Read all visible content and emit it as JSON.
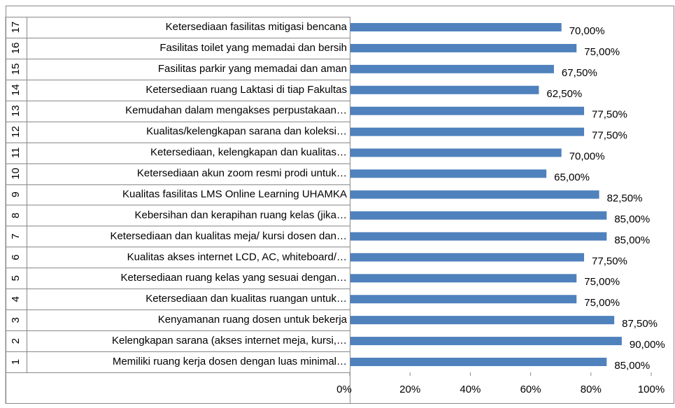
{
  "chart_data": {
    "type": "bar",
    "orientation": "horizontal",
    "row_numbers": [
      "1",
      "2",
      "3",
      "4",
      "5",
      "6",
      "7",
      "8",
      "9",
      "10",
      "11",
      "12",
      "13",
      "14",
      "15",
      "16",
      "17"
    ],
    "categories": [
      "Memiliki ruang kerja dosen dengan luas minimal…",
      "Kelengkapan sarana (akses internet meja, kursi,…",
      "Kenyamanan ruang dosen untuk bekerja",
      "Ketersediaan dan kualitas ruangan untuk…",
      "Ketersediaan ruang kelas yang sesuai dengan…",
      "Kualitas akses internet LCD, AC, whiteboard/…",
      "Ketersediaan dan kualitas meja/ kursi dosen dan…",
      "Kebersihan dan kerapihan ruang kelas (jika…",
      "Kualitas fasilitas LMS Online Learning UHAMKA",
      "Ketersediaan akun zoom resmi prodi untuk…",
      "Ketersediaan, kelengkapan dan kualitas…",
      "Kualitas/kelengkapan sarana dan koleksi…",
      "Kemudahan dalam mengakses perpustakaan…",
      "Ketersediaan ruang Laktasi di tiap Fakultas",
      "Fasilitas parkir yang memadai dan aman",
      "Fasilitas toilet yang memadai dan bersih",
      "Ketersediaan fasilitas mitigasi bencana"
    ],
    "values": [
      85,
      90,
      87.5,
      75,
      75,
      77.5,
      85,
      85,
      82.5,
      65,
      70,
      77.5,
      77.5,
      62.5,
      67.5,
      75,
      70
    ],
    "value_labels": [
      "85,00%",
      "90,00%",
      "87,50%",
      "75,00%",
      "75,00%",
      "77,50%",
      "85,00%",
      "85,00%",
      "82,50%",
      "65,00%",
      "70,00%",
      "77,50%",
      "77,50%",
      "62,50%",
      "67,50%",
      "75,00%",
      "70,00%"
    ],
    "color": "#4f81bd",
    "xlim": [
      0,
      100
    ],
    "xticks": [
      {
        "value": 0,
        "label": "0%"
      },
      {
        "value": 20,
        "label": "20%"
      },
      {
        "value": 40,
        "label": "40%"
      },
      {
        "value": 60,
        "label": "60%"
      },
      {
        "value": 80,
        "label": "80%"
      },
      {
        "value": 100,
        "label": "100%"
      }
    ]
  }
}
